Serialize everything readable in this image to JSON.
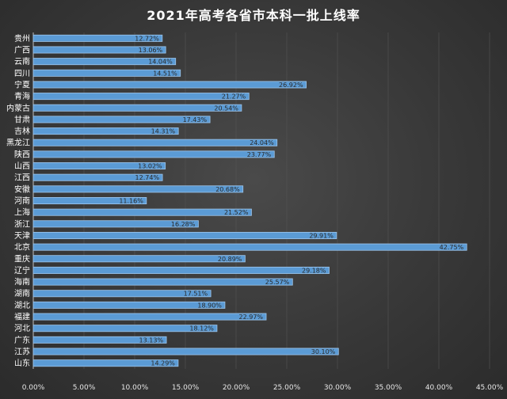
{
  "chart_data": {
    "type": "bar",
    "orientation": "horizontal",
    "title": "2021年高考各省市本科一批上线率",
    "categories": [
      "贵州",
      "广西",
      "云南",
      "四川",
      "宁夏",
      "青海",
      "内蒙古",
      "甘肃",
      "吉林",
      "黑龙江",
      "陕西",
      "山西",
      "江西",
      "安徽",
      "河南",
      "上海",
      "浙江",
      "天津",
      "北京",
      "重庆",
      "辽宁",
      "海南",
      "湖南",
      "湖北",
      "福建",
      "河北",
      "广东",
      "江苏",
      "山东"
    ],
    "values": [
      12.72,
      13.06,
      14.04,
      14.51,
      26.92,
      21.27,
      20.54,
      17.43,
      14.31,
      24.04,
      23.77,
      13.02,
      12.74,
      20.68,
      11.16,
      21.52,
      16.28,
      29.91,
      42.75,
      20.89,
      29.18,
      25.57,
      17.51,
      18.9,
      22.97,
      18.12,
      13.13,
      30.1,
      14.29
    ],
    "data_labels": [
      "12.72%",
      "13.06%",
      "14.04%",
      "14.51%",
      "26.92%",
      "21.27%",
      "20.54%",
      "17.43%",
      "14.31%",
      "24.04%",
      "23.77%",
      "13.02%",
      "12.74%",
      "20.68%",
      "11.16%",
      "21.52%",
      "16.28%",
      "29.91%",
      "42.75%",
      "20.89%",
      "29.18%",
      "25.57%",
      "17.51%",
      "18.90%",
      "22.97%",
      "18.12%",
      "13.13%",
      "30.10%",
      "14.29%"
    ],
    "x_ticks": [
      "0.00%",
      "5.00%",
      "10.00%",
      "15.00%",
      "20.00%",
      "25.00%",
      "30.00%",
      "35.00%",
      "40.00%",
      "45.00%"
    ],
    "xlim": [
      0,
      45
    ],
    "grid": true,
    "colors": {
      "bar": "#5b9bd5",
      "bar_edge": "#9ec6ec",
      "background": "#3a3a3a",
      "title": "#ffffff"
    }
  }
}
